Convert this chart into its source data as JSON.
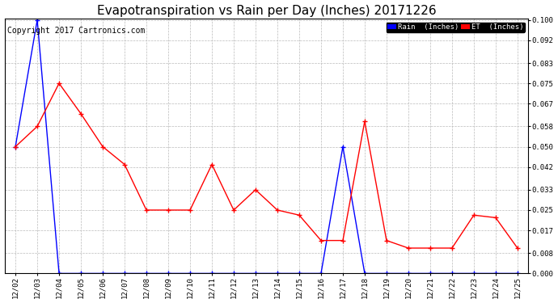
{
  "title": "Evapotranspiration vs Rain per Day (Inches) 20171226",
  "copyright": "Copyright 2017 Cartronics.com",
  "x_labels": [
    "12/02",
    "12/03",
    "12/04",
    "12/05",
    "12/06",
    "12/07",
    "12/08",
    "12/09",
    "12/10",
    "12/11",
    "12/12",
    "12/13",
    "12/14",
    "12/15",
    "12/16",
    "12/17",
    "12/18",
    "12/19",
    "12/20",
    "12/21",
    "12/22",
    "12/23",
    "12/24",
    "12/25"
  ],
  "rain_values": [
    0.05,
    0.1,
    0.0,
    0.0,
    0.0,
    0.0,
    0.0,
    0.0,
    0.0,
    0.0,
    0.0,
    0.0,
    0.0,
    0.0,
    0.0,
    0.05,
    0.0,
    0.0,
    0.0,
    0.0,
    0.0,
    0.0,
    0.0,
    0.0
  ],
  "et_values": [
    0.05,
    0.058,
    0.075,
    0.063,
    0.05,
    0.043,
    0.025,
    0.025,
    0.025,
    0.043,
    0.025,
    0.033,
    0.025,
    0.023,
    0.013,
    0.013,
    0.06,
    0.013,
    0.01,
    0.01,
    0.01,
    0.023,
    0.022,
    0.01
  ],
  "rain_color": "#0000FF",
  "et_color": "#FF0000",
  "background_color": "#FFFFFF",
  "plot_background": "#FFFFFF",
  "grid_color": "#BBBBBB",
  "ylim": [
    0.0,
    0.1005
  ],
  "yticks": [
    0.0,
    0.008,
    0.017,
    0.025,
    0.033,
    0.042,
    0.05,
    0.058,
    0.067,
    0.075,
    0.083,
    0.092,
    0.1
  ],
  "title_fontsize": 11,
  "copyright_fontsize": 7,
  "legend_rain_label": "Rain  (Inches)",
  "legend_et_label": "ET  (Inches)"
}
